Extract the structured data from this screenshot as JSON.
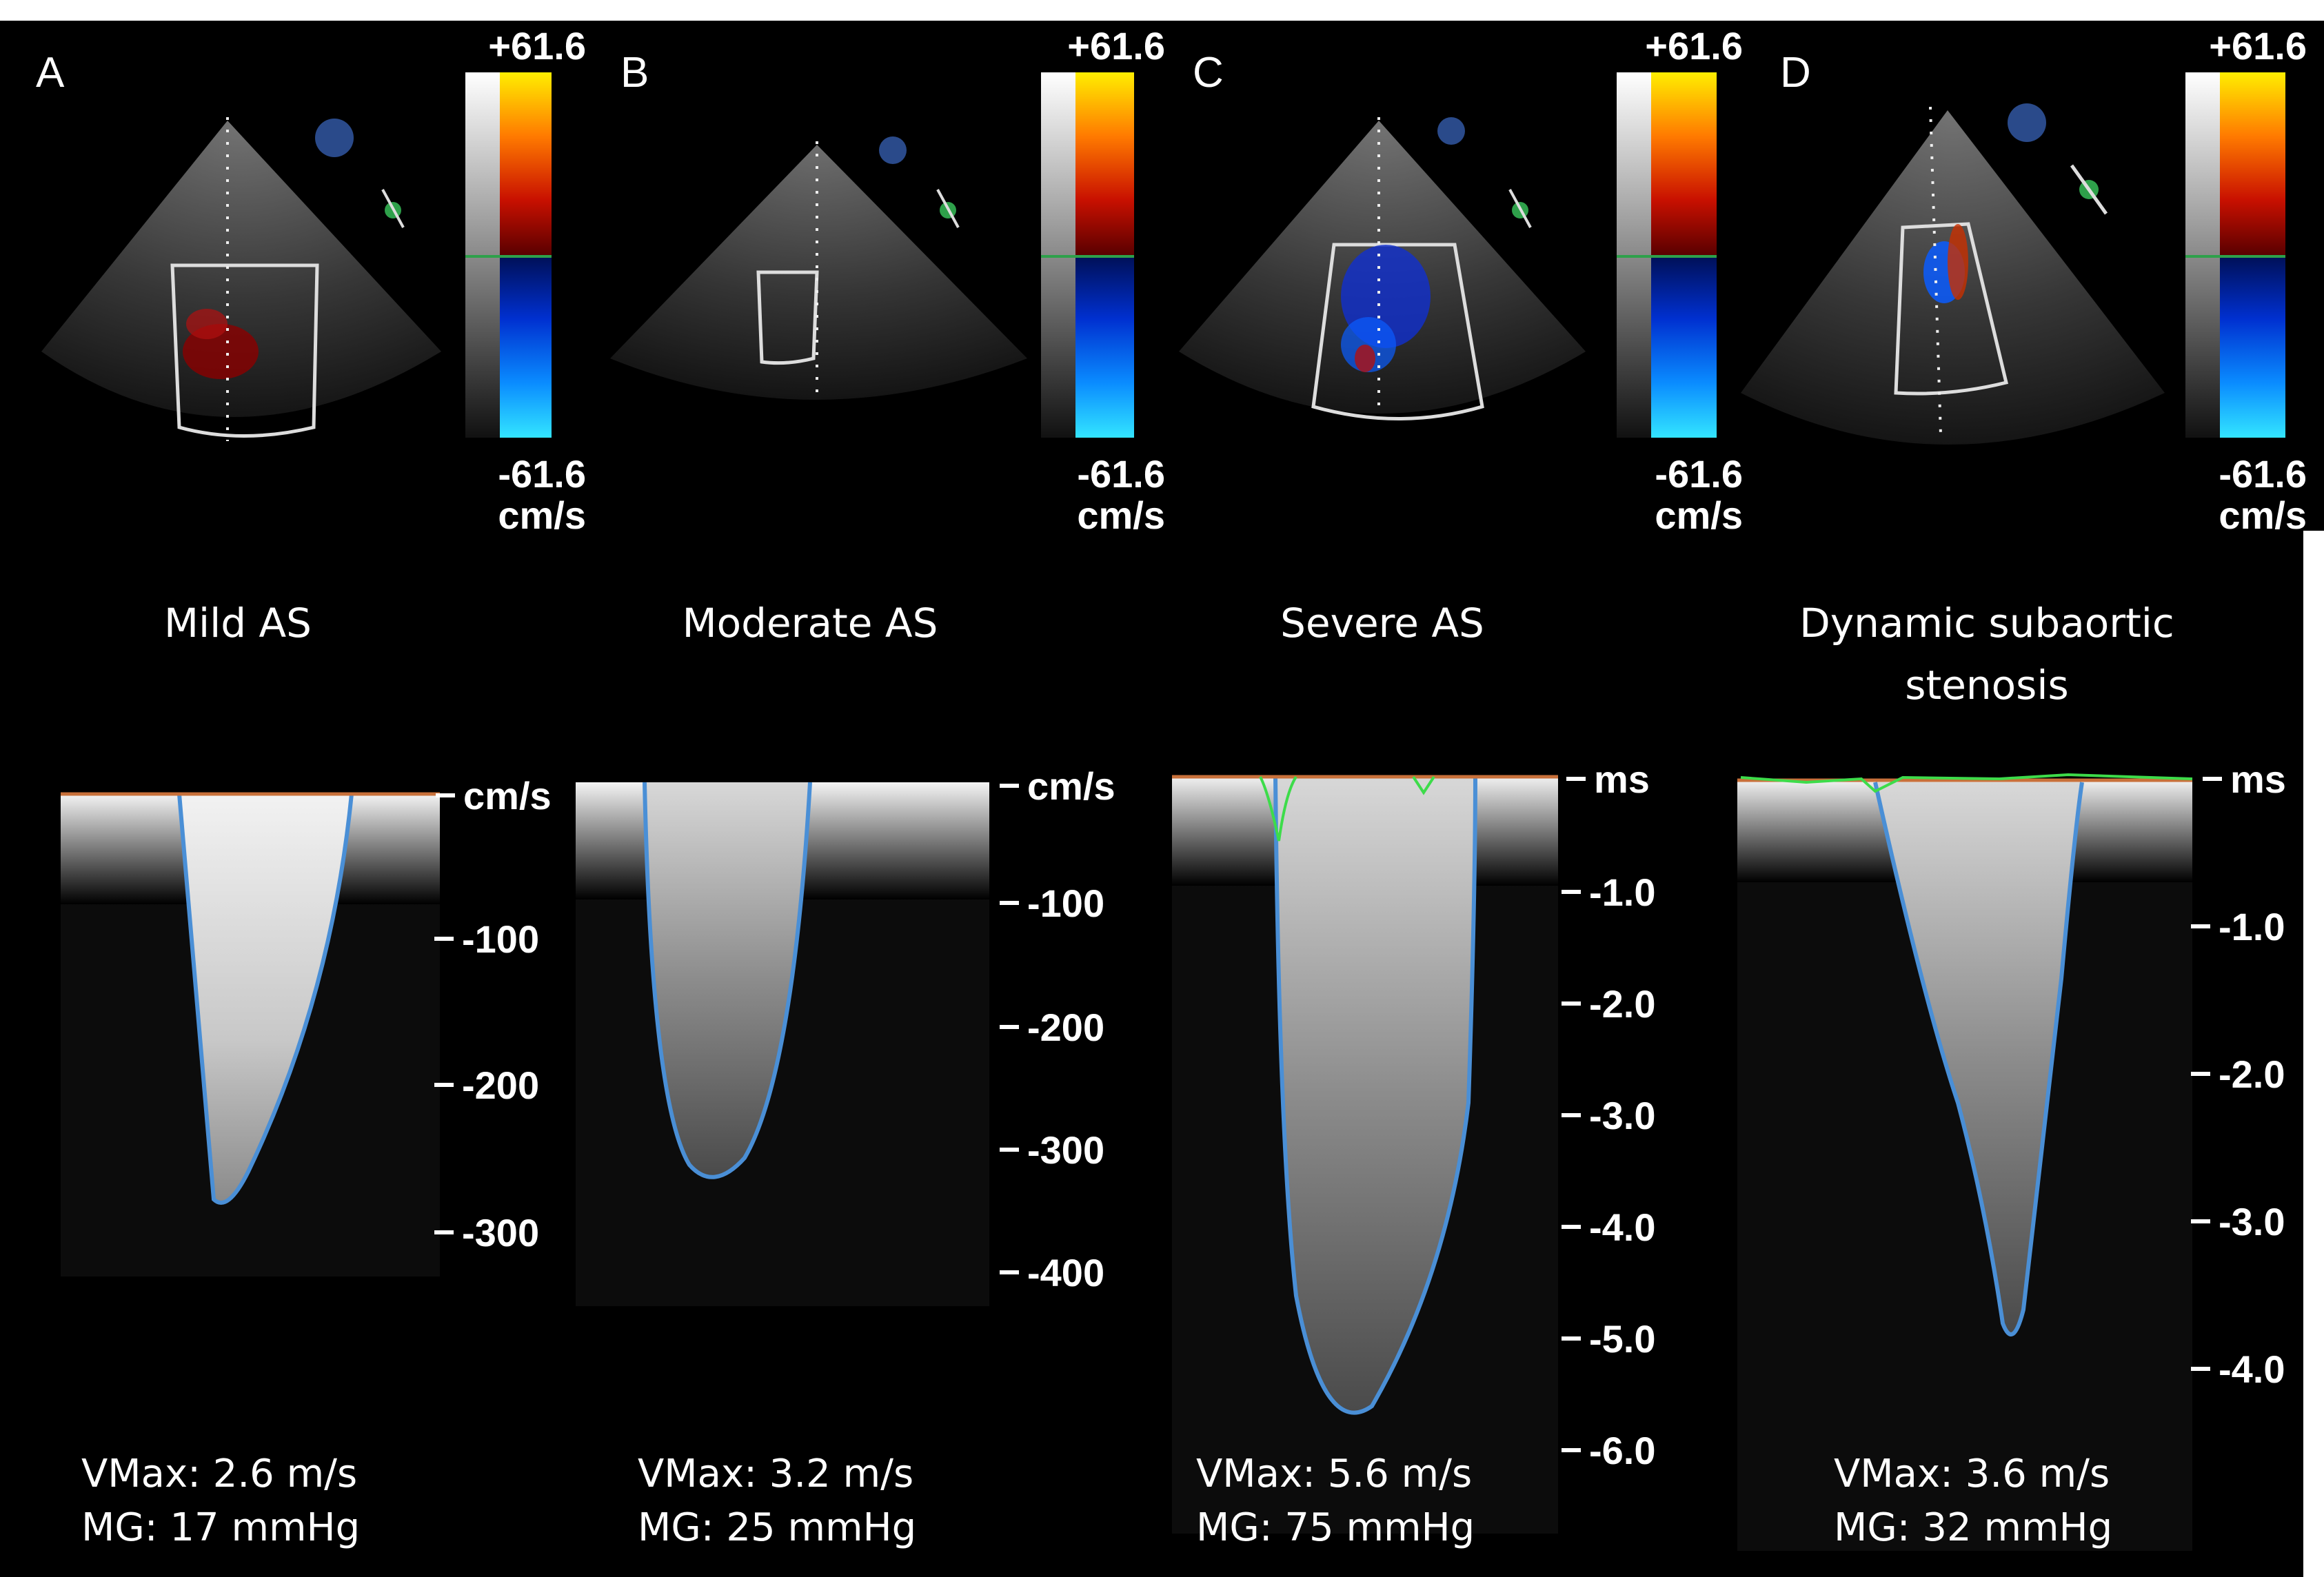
{
  "panels": [
    {
      "letter": "A",
      "colorbar": {
        "max": "+61.6",
        "min": "-61.6",
        "unit": "cm/s"
      },
      "condition": "Mild AS",
      "condition_line2": "",
      "doppler_unit": "cm/s",
      "doppler_ticks": [
        "-100",
        "-200",
        "-300"
      ],
      "vmax": "VMax: 2.6 m/s",
      "mg": "MG: 17 mmHg"
    },
    {
      "letter": "B",
      "colorbar": {
        "max": "+61.6",
        "min": "-61.6",
        "unit": "cm/s"
      },
      "condition": "Moderate AS",
      "condition_line2": "",
      "doppler_unit": "cm/s",
      "doppler_ticks": [
        "-100",
        "-200",
        "-300",
        "-400"
      ],
      "vmax": "VMax: 3.2 m/s",
      "mg": "MG: 25 mmHg"
    },
    {
      "letter": "C",
      "colorbar": {
        "max": "+61.6",
        "min": "-61.6",
        "unit": "cm/s"
      },
      "condition": "Severe AS",
      "condition_line2": "",
      "doppler_unit": "ms",
      "doppler_ticks": [
        "-1.0",
        "-2.0",
        "-3.0",
        "-4.0",
        "-5.0",
        "-6.0"
      ],
      "vmax": "VMax: 5.6 m/s",
      "mg": "MG: 75 mmHg"
    },
    {
      "letter": "D",
      "colorbar": {
        "max": "+61.6",
        "min": "-61.6",
        "unit": "cm/s"
      },
      "condition": "Dynamic subaortic",
      "condition_line2": "stenosis",
      "doppler_unit": "ms",
      "doppler_ticks": [
        "-1.0",
        "-2.0",
        "-3.0",
        "-4.0"
      ],
      "vmax": "VMax: 3.6 m/s",
      "mg": "MG: 32 mmHg"
    }
  ],
  "colors": {
    "background": "#000000",
    "envelope": "#4a8fd6",
    "baseline": "#c8703a",
    "green_trace": "#3ddc4a",
    "colorbar_pos_top": "#ffee00",
    "colorbar_pos_bottom": "#6b0000",
    "colorbar_neg_top": "#001a6b",
    "colorbar_neg_bottom": "#33e5ff"
  }
}
